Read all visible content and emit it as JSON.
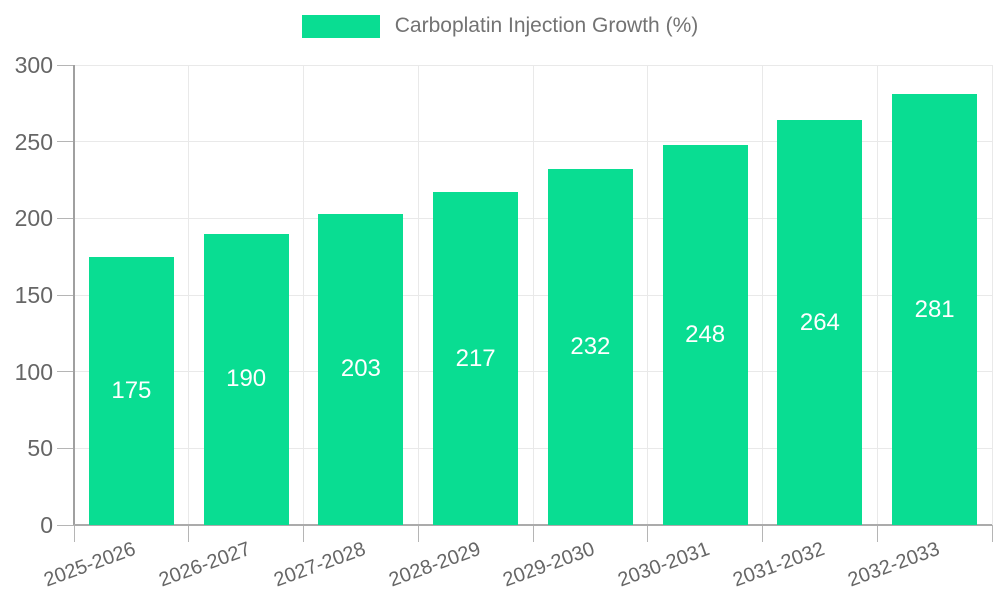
{
  "chart_data": {
    "type": "bar",
    "title": "Carboplatin Injection Growth (%)",
    "legend": [
      {
        "label": "Carboplatin Injection Growth (%)",
        "color": "#09dd92"
      }
    ],
    "legend_position": "top",
    "categories": [
      "2025-2026",
      "2026-2027",
      "2027-2028",
      "2028-2029",
      "2029-2030",
      "2030-2031",
      "2031-2032",
      "2032-2033"
    ],
    "values": [
      175,
      190,
      203,
      217,
      232,
      248,
      264,
      281
    ],
    "value_labels": [
      "175",
      "190",
      "203",
      "217",
      "232",
      "248",
      "264",
      "281"
    ],
    "xlabel": "",
    "ylabel": "",
    "ylim": [
      0,
      300
    ],
    "yticks": [
      0,
      50,
      100,
      150,
      200,
      250,
      300
    ],
    "grid": true,
    "x_tick_rotation_deg": -20,
    "bar_color": "#09dd92",
    "value_label_color": "#ffffff",
    "grid_color": "#e9e9e9",
    "axis_color": "#a5a5a5",
    "tick_text_color": "#666666",
    "legend_text_color": "#737373"
  }
}
